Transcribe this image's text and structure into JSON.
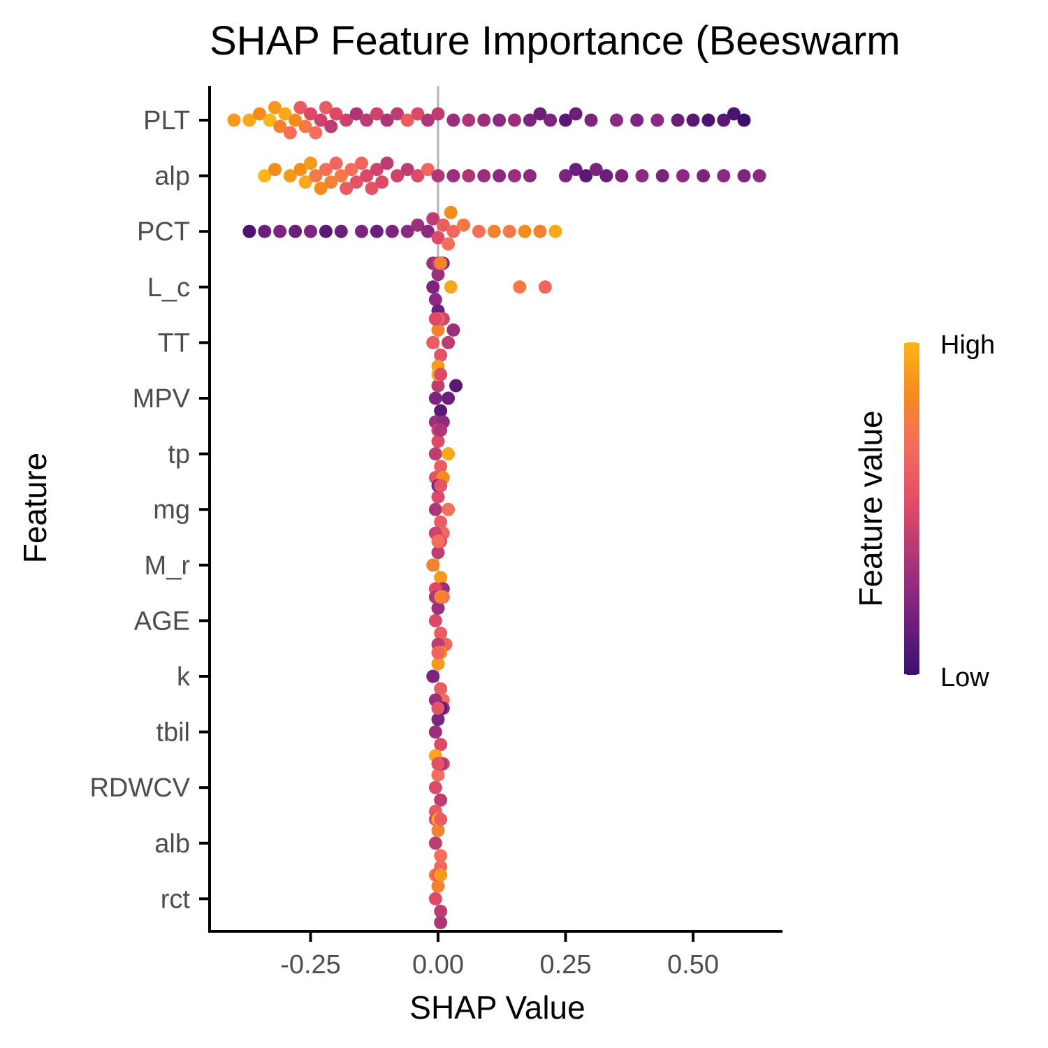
{
  "chart_data": {
    "type": "scatter",
    "subtype": "beeswarm",
    "title": "SHAP Feature Importance (Beeswarm",
    "xlabel": "SHAP Value",
    "ylabel": "Feature",
    "xlim": [
      -0.45,
      0.67
    ],
    "x_ticks": [
      -0.25,
      0.0,
      0.25,
      0.5
    ],
    "x_tick_labels": [
      "-0.25",
      "0.00",
      "0.25",
      "0.50"
    ],
    "zero_line": true,
    "grid": false,
    "legend": {
      "title": "Feature value",
      "high_label": "High",
      "low_label": "Low",
      "placement": "right",
      "colors": [
        "#3b0f70",
        "#8c2981",
        "#de4968",
        "#f66e5b",
        "#f48c1c",
        "#fbb61a"
      ]
    },
    "features": [
      {
        "name": "PLT",
        "points": [
          {
            "x": -0.4,
            "v": 0.9
          },
          {
            "x": -0.37,
            "v": 0.95
          },
          {
            "x": -0.35,
            "v": 0.85
          },
          {
            "x": -0.33,
            "v": 1.0
          },
          {
            "x": -0.32,
            "v": 0.9
          },
          {
            "x": -0.31,
            "v": 0.8
          },
          {
            "x": -0.3,
            "v": 0.95
          },
          {
            "x": -0.29,
            "v": 0.7
          },
          {
            "x": -0.28,
            "v": 0.85
          },
          {
            "x": -0.27,
            "v": 0.6
          },
          {
            "x": -0.26,
            "v": 0.75
          },
          {
            "x": -0.25,
            "v": 0.5
          },
          {
            "x": -0.24,
            "v": 0.7
          },
          {
            "x": -0.23,
            "v": 0.45
          },
          {
            "x": -0.22,
            "v": 0.6
          },
          {
            "x": -0.21,
            "v": 0.4
          },
          {
            "x": -0.2,
            "v": 0.5
          },
          {
            "x": -0.18,
            "v": 0.45
          },
          {
            "x": -0.16,
            "v": 0.35
          },
          {
            "x": -0.14,
            "v": 0.4
          },
          {
            "x": -0.12,
            "v": 0.45
          },
          {
            "x": -0.1,
            "v": 0.35
          },
          {
            "x": -0.08,
            "v": 0.4
          },
          {
            "x": -0.06,
            "v": 0.6
          },
          {
            "x": -0.04,
            "v": 0.5
          },
          {
            "x": -0.02,
            "v": 0.35
          },
          {
            "x": 0.0,
            "v": 0.4
          },
          {
            "x": 0.03,
            "v": 0.3
          },
          {
            "x": 0.06,
            "v": 0.35
          },
          {
            "x": 0.09,
            "v": 0.3
          },
          {
            "x": 0.12,
            "v": 0.25
          },
          {
            "x": 0.15,
            "v": 0.3
          },
          {
            "x": 0.18,
            "v": 0.2
          },
          {
            "x": 0.2,
            "v": 0.15
          },
          {
            "x": 0.22,
            "v": 0.2
          },
          {
            "x": 0.25,
            "v": 0.1
          },
          {
            "x": 0.27,
            "v": 0.15
          },
          {
            "x": 0.3,
            "v": 0.2
          },
          {
            "x": 0.35,
            "v": 0.25
          },
          {
            "x": 0.39,
            "v": 0.2
          },
          {
            "x": 0.43,
            "v": 0.25
          },
          {
            "x": 0.47,
            "v": 0.15
          },
          {
            "x": 0.5,
            "v": 0.1
          },
          {
            "x": 0.53,
            "v": 0.05
          },
          {
            "x": 0.56,
            "v": 0.1
          },
          {
            "x": 0.58,
            "v": 0.05
          },
          {
            "x": 0.6,
            "v": 0.0
          }
        ]
      },
      {
        "name": "alp",
        "points": [
          {
            "x": -0.34,
            "v": 1.0
          },
          {
            "x": -0.32,
            "v": 0.85
          },
          {
            "x": -0.29,
            "v": 0.9
          },
          {
            "x": -0.27,
            "v": 0.85
          },
          {
            "x": -0.26,
            "v": 0.95
          },
          {
            "x": -0.25,
            "v": 0.9
          },
          {
            "x": -0.24,
            "v": 0.75
          },
          {
            "x": -0.23,
            "v": 0.85
          },
          {
            "x": -0.22,
            "v": 0.7
          },
          {
            "x": -0.21,
            "v": 0.8
          },
          {
            "x": -0.2,
            "v": 0.65
          },
          {
            "x": -0.19,
            "v": 0.75
          },
          {
            "x": -0.18,
            "v": 0.6
          },
          {
            "x": -0.17,
            "v": 0.7
          },
          {
            "x": -0.16,
            "v": 0.55
          },
          {
            "x": -0.15,
            "v": 0.65
          },
          {
            "x": -0.14,
            "v": 0.5
          },
          {
            "x": -0.13,
            "v": 0.55
          },
          {
            "x": -0.12,
            "v": 0.45
          },
          {
            "x": -0.11,
            "v": 0.5
          },
          {
            "x": -0.1,
            "v": 0.4
          },
          {
            "x": -0.08,
            "v": 0.45
          },
          {
            "x": -0.06,
            "v": 0.4
          },
          {
            "x": -0.04,
            "v": 0.5
          },
          {
            "x": -0.02,
            "v": 0.65
          },
          {
            "x": 0.0,
            "v": 0.35
          },
          {
            "x": 0.03,
            "v": 0.3
          },
          {
            "x": 0.06,
            "v": 0.35
          },
          {
            "x": 0.09,
            "v": 0.3
          },
          {
            "x": 0.12,
            "v": 0.25
          },
          {
            "x": 0.15,
            "v": 0.3
          },
          {
            "x": 0.18,
            "v": 0.25
          },
          {
            "x": 0.25,
            "v": 0.2
          },
          {
            "x": 0.27,
            "v": 0.15
          },
          {
            "x": 0.29,
            "v": 0.1
          },
          {
            "x": 0.31,
            "v": 0.2
          },
          {
            "x": 0.33,
            "v": 0.15
          },
          {
            "x": 0.36,
            "v": 0.2
          },
          {
            "x": 0.4,
            "v": 0.25
          },
          {
            "x": 0.44,
            "v": 0.2
          },
          {
            "x": 0.48,
            "v": 0.25
          },
          {
            "x": 0.52,
            "v": 0.2
          },
          {
            "x": 0.56,
            "v": 0.25
          },
          {
            "x": 0.6,
            "v": 0.2
          },
          {
            "x": 0.63,
            "v": 0.25
          }
        ]
      },
      {
        "name": "PCT",
        "points": [
          {
            "x": -0.37,
            "v": 0.05
          },
          {
            "x": -0.34,
            "v": 0.15
          },
          {
            "x": -0.31,
            "v": 0.2
          },
          {
            "x": -0.28,
            "v": 0.15
          },
          {
            "x": -0.25,
            "v": 0.2
          },
          {
            "x": -0.22,
            "v": 0.1
          },
          {
            "x": -0.19,
            "v": 0.15
          },
          {
            "x": -0.15,
            "v": 0.2
          },
          {
            "x": -0.12,
            "v": 0.15
          },
          {
            "x": -0.09,
            "v": 0.2
          },
          {
            "x": -0.06,
            "v": 0.25
          },
          {
            "x": -0.04,
            "v": 0.3
          },
          {
            "x": -0.02,
            "v": 0.25
          },
          {
            "x": -0.01,
            "v": 0.4
          },
          {
            "x": 0.0,
            "v": 0.5
          },
          {
            "x": 0.01,
            "v": 0.6
          },
          {
            "x": 0.02,
            "v": 0.7
          },
          {
            "x": 0.025,
            "v": 0.85
          },
          {
            "x": 0.03,
            "v": 0.65
          },
          {
            "x": 0.05,
            "v": 0.75
          },
          {
            "x": 0.08,
            "v": 0.7
          },
          {
            "x": 0.11,
            "v": 0.8
          },
          {
            "x": 0.14,
            "v": 0.75
          },
          {
            "x": 0.17,
            "v": 0.85
          },
          {
            "x": 0.2,
            "v": 0.8
          },
          {
            "x": 0.23,
            "v": 0.95
          }
        ]
      },
      {
        "name": "L_c",
        "points": [
          {
            "x": -0.01,
            "v": 0.2
          },
          {
            "x": 0.0,
            "v": 0.3
          },
          {
            "x": -0.005,
            "v": 0.25
          },
          {
            "x": 0.005,
            "v": 0.35
          },
          {
            "x": 0.0,
            "v": 0.15
          },
          {
            "x": -0.01,
            "v": 0.3
          },
          {
            "x": 0.01,
            "v": 0.25
          },
          {
            "x": 0.0,
            "v": 0.4
          },
          {
            "x": 0.005,
            "v": 0.8
          },
          {
            "x": 0.025,
            "v": 0.95
          },
          {
            "x": 0.16,
            "v": 0.75
          },
          {
            "x": 0.21,
            "v": 0.65
          }
        ]
      },
      {
        "name": "TT",
        "points": [
          {
            "x": -0.01,
            "v": 0.6
          },
          {
            "x": 0.0,
            "v": 0.8
          },
          {
            "x": 0.005,
            "v": 0.55
          },
          {
            "x": -0.005,
            "v": 0.7
          },
          {
            "x": 0.0,
            "v": 0.9
          },
          {
            "x": 0.01,
            "v": 0.45
          },
          {
            "x": 0.02,
            "v": 0.4
          },
          {
            "x": 0.03,
            "v": 0.3
          },
          {
            "x": 0.0,
            "v": 0.65
          },
          {
            "x": -0.005,
            "v": 0.5
          }
        ]
      },
      {
        "name": "MPV",
        "points": [
          {
            "x": -0.005,
            "v": 0.2
          },
          {
            "x": 0.0,
            "v": 0.4
          },
          {
            "x": 0.005,
            "v": 0.1
          },
          {
            "x": 0.0,
            "v": 0.9
          },
          {
            "x": -0.005,
            "v": 0.3
          },
          {
            "x": 0.01,
            "v": 0.25
          },
          {
            "x": 0.02,
            "v": 0.15
          },
          {
            "x": 0.035,
            "v": 0.1
          },
          {
            "x": 0.0,
            "v": 0.95
          },
          {
            "x": 0.005,
            "v": 0.5
          }
        ]
      },
      {
        "name": "tp",
        "points": [
          {
            "x": -0.005,
            "v": 0.4
          },
          {
            "x": 0.0,
            "v": 0.5
          },
          {
            "x": 0.005,
            "v": 0.6
          },
          {
            "x": 0.0,
            "v": 0.3
          },
          {
            "x": -0.005,
            "v": 0.55
          },
          {
            "x": 0.01,
            "v": 0.85
          },
          {
            "x": 0.02,
            "v": 0.95
          },
          {
            "x": 0.0,
            "v": 0.45
          },
          {
            "x": 0.005,
            "v": 0.35
          }
        ]
      },
      {
        "name": "mg",
        "points": [
          {
            "x": -0.005,
            "v": 0.35
          },
          {
            "x": 0.0,
            "v": 0.5
          },
          {
            "x": 0.005,
            "v": 0.6
          },
          {
            "x": 0.0,
            "v": 0.2
          },
          {
            "x": 0.01,
            "v": 0.65
          },
          {
            "x": 0.02,
            "v": 0.7
          },
          {
            "x": -0.005,
            "v": 0.45
          },
          {
            "x": 0.005,
            "v": 0.55
          }
        ]
      },
      {
        "name": "M_r",
        "points": [
          {
            "x": -0.01,
            "v": 0.8
          },
          {
            "x": 0.0,
            "v": 0.4
          },
          {
            "x": 0.005,
            "v": 0.9
          },
          {
            "x": 0.0,
            "v": 0.6
          },
          {
            "x": 0.01,
            "v": 0.3
          },
          {
            "x": -0.005,
            "v": 0.5
          },
          {
            "x": 0.005,
            "v": 0.55
          },
          {
            "x": 0.0,
            "v": 0.7
          }
        ]
      },
      {
        "name": "AGE",
        "points": [
          {
            "x": -0.005,
            "v": 0.5
          },
          {
            "x": 0.0,
            "v": 0.3
          },
          {
            "x": 0.005,
            "v": 0.6
          },
          {
            "x": 0.01,
            "v": 0.7
          },
          {
            "x": 0.015,
            "v": 0.65
          },
          {
            "x": 0.0,
            "v": 0.4
          },
          {
            "x": -0.005,
            "v": 0.35
          },
          {
            "x": 0.005,
            "v": 0.8
          }
        ]
      },
      {
        "name": "k",
        "points": [
          {
            "x": -0.01,
            "v": 0.2
          },
          {
            "x": 0.0,
            "v": 0.9
          },
          {
            "x": 0.005,
            "v": 0.6
          },
          {
            "x": 0.0,
            "v": 0.5
          },
          {
            "x": 0.01,
            "v": 0.7
          },
          {
            "x": -0.005,
            "v": 0.3
          },
          {
            "x": 0.005,
            "v": 0.85
          },
          {
            "x": 0.0,
            "v": 0.65
          }
        ]
      },
      {
        "name": "tbil",
        "points": [
          {
            "x": -0.005,
            "v": 0.3
          },
          {
            "x": 0.0,
            "v": 0.2
          },
          {
            "x": 0.005,
            "v": 0.5
          },
          {
            "x": 0.01,
            "v": 0.25
          },
          {
            "x": -0.005,
            "v": 0.95
          },
          {
            "x": 0.0,
            "v": 0.45
          },
          {
            "x": 0.005,
            "v": 0.1
          },
          {
            "x": 0.0,
            "v": 0.55
          }
        ]
      },
      {
        "name": "RDWCV",
        "points": [
          {
            "x": -0.005,
            "v": 0.5
          },
          {
            "x": 0.0,
            "v": 0.7
          },
          {
            "x": 0.005,
            "v": 0.4
          },
          {
            "x": 0.01,
            "v": 0.45
          },
          {
            "x": -0.005,
            "v": 0.6
          },
          {
            "x": 0.0,
            "v": 0.85
          },
          {
            "x": 0.005,
            "v": 0.35
          },
          {
            "x": 0.0,
            "v": 0.55
          }
        ]
      },
      {
        "name": "alb",
        "points": [
          {
            "x": -0.005,
            "v": 0.4
          },
          {
            "x": 0.0,
            "v": 0.8
          },
          {
            "x": 0.005,
            "v": 0.7
          },
          {
            "x": 0.0,
            "v": 0.55
          },
          {
            "x": 0.005,
            "v": 0.65
          },
          {
            "x": -0.005,
            "v": 0.5
          },
          {
            "x": 0.0,
            "v": 0.95
          },
          {
            "x": 0.005,
            "v": 0.6
          }
        ]
      },
      {
        "name": "rct",
        "points": [
          {
            "x": -0.005,
            "v": 0.5
          },
          {
            "x": 0.0,
            "v": 0.8
          },
          {
            "x": 0.005,
            "v": 0.4
          },
          {
            "x": 0.0,
            "v": 0.65
          },
          {
            "x": 0.005,
            "v": 0.35
          },
          {
            "x": -0.005,
            "v": 0.75
          },
          {
            "x": 0.0,
            "v": 0.6
          },
          {
            "x": 0.005,
            "v": 0.9
          }
        ]
      }
    ]
  }
}
